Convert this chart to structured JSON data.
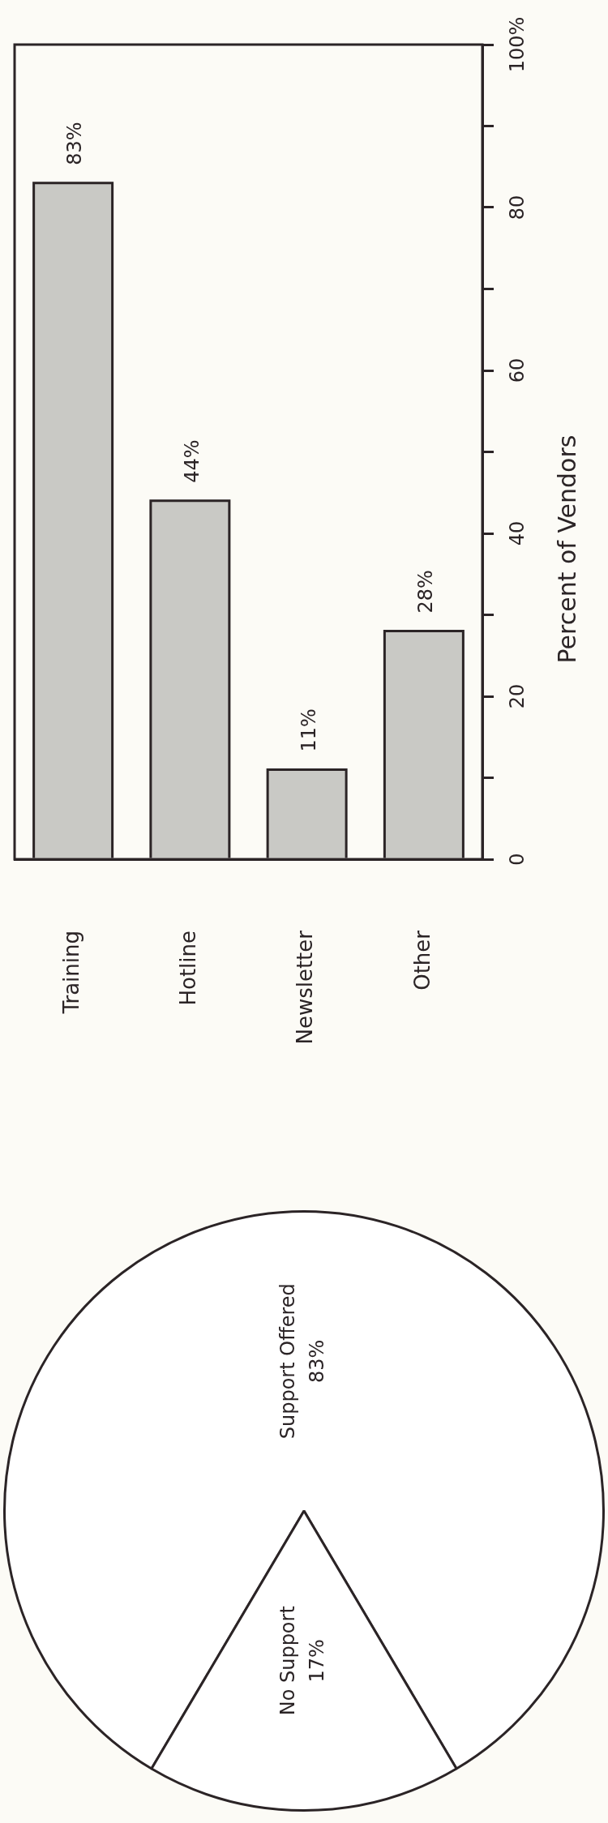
{
  "chart_data": [
    {
      "type": "bar",
      "categories": [
        "Training",
        "Hotline",
        "Newsletter",
        "Other"
      ],
      "values": [
        83,
        44,
        11,
        28
      ],
      "value_labels": [
        "83%",
        "44%",
        "11%",
        "28%"
      ],
      "color": "#c9c9c5",
      "ylabel": "Percent of Vendors",
      "ylim": [
        0,
        100
      ],
      "yticks": [
        0,
        {
          "value": 10,
          "label": null
        },
        20,
        {
          "value": 30,
          "label": null
        },
        40,
        {
          "value": 50,
          "label": null
        },
        60,
        {
          "value": 70,
          "label": null
        },
        80,
        {
          "value": 90,
          "label": null
        },
        {
          "value": 100,
          "label": "100%"
        }
      ]
    },
    {
      "type": "pie",
      "categories": [
        "Support Offered",
        "No Support"
      ],
      "values": [
        83,
        17
      ],
      "value_labels": [
        "83%",
        "17%"
      ],
      "colors": [
        "#ffffff",
        "#ffffff"
      ]
    }
  ]
}
